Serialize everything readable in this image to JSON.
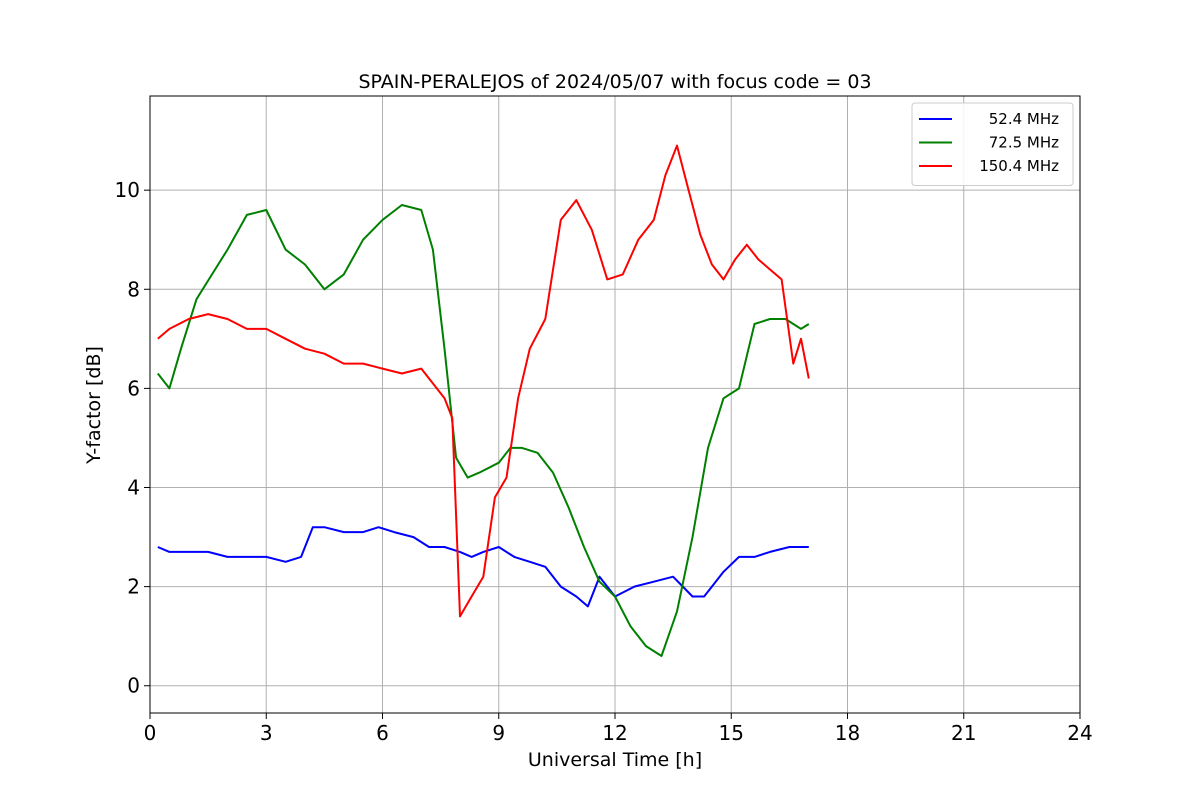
{
  "chart_data": {
    "type": "line",
    "title": "SPAIN-PERALEJOS of 2024/05/07 with focus code = 03",
    "xlabel": "Universal Time [h]",
    "ylabel": "Y-factor [dB]",
    "xlim": [
      0,
      24
    ],
    "ylim": [
      -0.55,
      11.9
    ],
    "xticks": [
      0,
      3,
      6,
      9,
      12,
      15,
      18,
      21,
      24
    ],
    "yticks": [
      0,
      2,
      4,
      6,
      8,
      10
    ],
    "grid": true,
    "legend_position": "top-right",
    "series": [
      {
        "name": "52.4 MHz",
        "color": "#0000ff",
        "x": [
          0.2,
          0.5,
          1.0,
          1.5,
          2.0,
          2.5,
          3.0,
          3.5,
          3.9,
          4.2,
          4.5,
          5.0,
          5.5,
          5.9,
          6.3,
          6.8,
          7.2,
          7.6,
          8.0,
          8.3,
          8.6,
          9.0,
          9.4,
          9.8,
          10.2,
          10.6,
          11.0,
          11.3,
          11.6,
          12.0,
          12.5,
          13.0,
          13.5,
          14.0,
          14.3,
          14.5,
          14.8,
          15.2,
          15.6,
          16.0,
          16.5,
          17.0
        ],
        "y": [
          2.8,
          2.7,
          2.7,
          2.7,
          2.6,
          2.6,
          2.6,
          2.5,
          2.6,
          3.2,
          3.2,
          3.1,
          3.1,
          3.2,
          3.1,
          3.0,
          2.8,
          2.8,
          2.7,
          2.6,
          2.7,
          2.8,
          2.6,
          2.5,
          2.4,
          2.0,
          1.8,
          1.6,
          2.2,
          1.8,
          2.0,
          2.1,
          2.2,
          1.8,
          1.8,
          2.0,
          2.3,
          2.6,
          2.6,
          2.7,
          2.8,
          2.8
        ]
      },
      {
        "name": "72.5 MHz",
        "color": "#008000",
        "x": [
          0.2,
          0.5,
          0.8,
          1.2,
          1.6,
          2.0,
          2.5,
          3.0,
          3.5,
          4.0,
          4.5,
          5.0,
          5.5,
          6.0,
          6.5,
          7.0,
          7.3,
          7.6,
          7.9,
          8.2,
          8.5,
          9.0,
          9.3,
          9.6,
          10.0,
          10.4,
          10.8,
          11.2,
          11.6,
          12.0,
          12.4,
          12.8,
          13.2,
          13.6,
          14.0,
          14.4,
          14.8,
          15.2,
          15.6,
          16.0,
          16.4,
          16.8,
          17.0
        ],
        "y": [
          6.3,
          6.0,
          6.8,
          7.8,
          8.3,
          8.8,
          9.5,
          9.6,
          8.8,
          8.5,
          8.0,
          8.3,
          9.0,
          9.4,
          9.7,
          9.6,
          8.8,
          6.8,
          4.6,
          4.2,
          4.3,
          4.5,
          4.8,
          4.8,
          4.7,
          4.3,
          3.6,
          2.8,
          2.1,
          1.8,
          1.2,
          0.8,
          0.6,
          1.5,
          3.0,
          4.8,
          5.8,
          6.0,
          7.3,
          7.4,
          7.4,
          7.2,
          7.3
        ]
      },
      {
        "name": "150.4 MHz",
        "color": "#ff0000",
        "x": [
          0.2,
          0.5,
          1.0,
          1.5,
          2.0,
          2.5,
          3.0,
          3.5,
          4.0,
          4.5,
          5.0,
          5.5,
          6.0,
          6.5,
          7.0,
          7.4,
          7.6,
          7.8,
          8.0,
          8.3,
          8.6,
          8.9,
          9.2,
          9.5,
          9.8,
          10.2,
          10.6,
          11.0,
          11.4,
          11.8,
          12.2,
          12.6,
          13.0,
          13.3,
          13.6,
          13.9,
          14.2,
          14.5,
          14.8,
          15.1,
          15.4,
          15.7,
          16.0,
          16.3,
          16.6,
          16.8,
          17.0
        ],
        "y": [
          7.0,
          7.2,
          7.4,
          7.5,
          7.4,
          7.2,
          7.2,
          7.0,
          6.8,
          6.7,
          6.5,
          6.5,
          6.4,
          6.3,
          6.4,
          6.0,
          5.8,
          5.4,
          1.4,
          1.8,
          2.2,
          3.8,
          4.2,
          5.8,
          6.8,
          7.4,
          9.4,
          9.8,
          9.2,
          8.2,
          8.3,
          9.0,
          9.4,
          10.3,
          10.9,
          10.0,
          9.1,
          8.5,
          8.2,
          8.6,
          8.9,
          8.6,
          8.4,
          8.2,
          6.5,
          7.0,
          6.2
        ]
      }
    ]
  }
}
